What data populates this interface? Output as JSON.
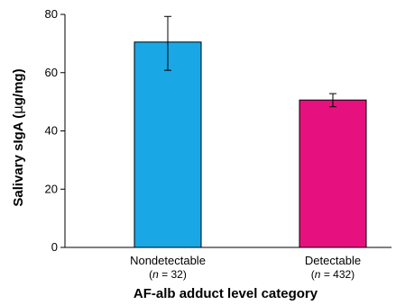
{
  "chart_data": {
    "type": "bar",
    "title": "",
    "xlabel": "AF-alb adduct level category",
    "ylabel_main": "Salivary sIgA (",
    "ylabel_mu": "μ",
    "ylabel_tail": "g/mg)",
    "ylim": [
      0,
      80
    ],
    "yticks": [
      "0",
      "20",
      "40",
      "60",
      "80"
    ],
    "grid": false,
    "categories": [
      "Nondetectable",
      "Detectable"
    ],
    "n_labels": [
      {
        "open": "(",
        "n": "n",
        "eq": " = 32)"
      },
      {
        "open": "(",
        "n": "n",
        "eq": " = 432)"
      }
    ],
    "values": [
      70.5,
      50.6
    ],
    "error_upper": [
      79.3,
      52.8
    ],
    "error_lower": [
      60.8,
      48.3
    ],
    "colors": [
      "#1aa7e6",
      "#e6117f"
    ]
  }
}
